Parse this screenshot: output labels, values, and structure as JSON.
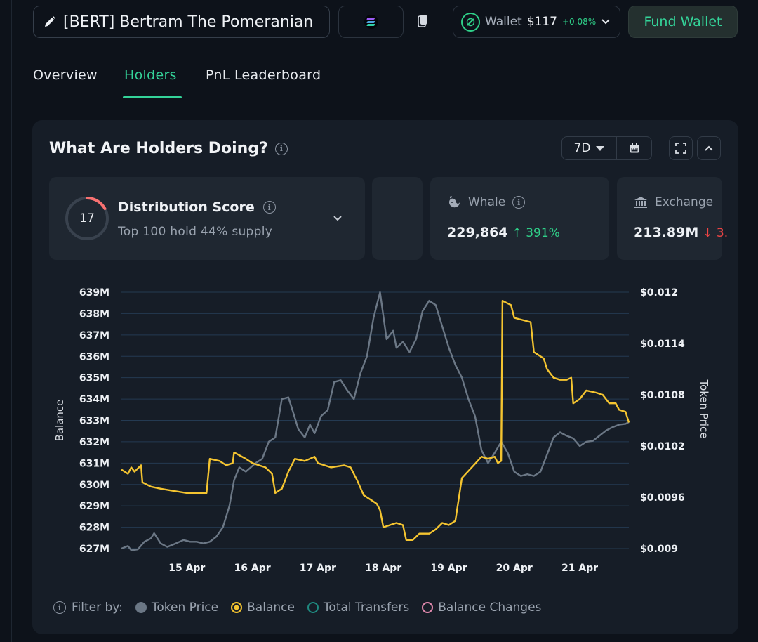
{
  "topbar": {
    "token_name": "[BERT] Bertram The Pomeranian",
    "wallet_label": "Wallet",
    "wallet_amount": "$117",
    "wallet_change": "+0.08%",
    "fund_label": "Fund Wallet"
  },
  "tabs": [
    {
      "label": "Overview",
      "active": false
    },
    {
      "label": "Holders",
      "active": true
    },
    {
      "label": "PnL Leaderboard",
      "active": false
    }
  ],
  "card": {
    "title": "What Are Holders Doing?",
    "range": "7D"
  },
  "tiles": {
    "distribution": {
      "score": "17",
      "score_value": 17,
      "title": "Distribution Score",
      "subtitle": "Top 100 hold 44% supply"
    },
    "whale": {
      "label": "Whale",
      "value": "229,864",
      "change": "↑ 391%"
    },
    "exchange": {
      "label": "Exchange",
      "value": "213.89M",
      "change": "↓ 3."
    }
  },
  "legend": {
    "filter_label": "Filter by:",
    "items": [
      {
        "name": "Token Price",
        "color": "#6b7785",
        "style": "filled"
      },
      {
        "name": "Balance",
        "color": "#f4c430",
        "style": "ring"
      },
      {
        "name": "Total Transfers",
        "color": "#1f8a80",
        "style": "outline"
      },
      {
        "name": "Balance Changes",
        "color": "#e58bb0",
        "style": "outline"
      }
    ]
  },
  "chart_data": {
    "type": "line",
    "ylabel": "Balance",
    "y2label": "Token Price",
    "ylim": [
      627,
      639
    ],
    "y_unit": "M",
    "y2lim": [
      0.009,
      0.012
    ],
    "y_ticks": [
      "627M",
      "628M",
      "629M",
      "630M",
      "631M",
      "632M",
      "633M",
      "634M",
      "635M",
      "636M",
      "637M",
      "638M",
      "639M"
    ],
    "y2_ticks": [
      "$0.009",
      "$0.0096",
      "$0.0102",
      "$0.0108",
      "$0.0114",
      "$0.012"
    ],
    "x_ticks": [
      "15 Apr",
      "16 Apr",
      "17 Apr",
      "18 Apr",
      "19 Apr",
      "20 Apr",
      "21 Apr"
    ],
    "x_range_days": [
      14.0,
      21.75
    ],
    "grid": true,
    "series": [
      {
        "name": "Balance",
        "axis": "left",
        "color": "#f4c430",
        "points": [
          [
            14.0,
            630.7
          ],
          [
            14.1,
            630.5
          ],
          [
            14.15,
            630.8
          ],
          [
            14.2,
            630.6
          ],
          [
            14.3,
            630.9
          ],
          [
            14.32,
            630.1
          ],
          [
            14.45,
            629.9
          ],
          [
            14.6,
            629.8
          ],
          [
            14.8,
            629.7
          ],
          [
            15.0,
            629.6
          ],
          [
            15.3,
            629.6
          ],
          [
            15.35,
            631.2
          ],
          [
            15.5,
            631.1
          ],
          [
            15.6,
            630.9
          ],
          [
            15.7,
            631.0
          ],
          [
            15.72,
            631.5
          ],
          [
            15.9,
            631.2
          ],
          [
            16.0,
            631.0
          ],
          [
            16.2,
            630.8
          ],
          [
            16.3,
            630.5
          ],
          [
            16.35,
            629.6
          ],
          [
            16.45,
            629.8
          ],
          [
            16.55,
            630.6
          ],
          [
            16.65,
            631.2
          ],
          [
            16.8,
            631.1
          ],
          [
            16.95,
            631.3
          ],
          [
            17.0,
            631.0
          ],
          [
            17.2,
            630.8
          ],
          [
            17.4,
            630.9
          ],
          [
            17.5,
            630.8
          ],
          [
            17.6,
            630.2
          ],
          [
            17.7,
            629.5
          ],
          [
            17.8,
            629.3
          ],
          [
            17.9,
            629.1
          ],
          [
            17.95,
            628.8
          ],
          [
            18.0,
            628.0
          ],
          [
            18.1,
            628.1
          ],
          [
            18.2,
            628.2
          ],
          [
            18.3,
            628.1
          ],
          [
            18.35,
            627.4
          ],
          [
            18.45,
            627.4
          ],
          [
            18.55,
            627.7
          ],
          [
            18.7,
            627.7
          ],
          [
            18.8,
            627.9
          ],
          [
            18.9,
            628.2
          ],
          [
            19.0,
            628.1
          ],
          [
            19.1,
            628.3
          ],
          [
            19.2,
            630.3
          ],
          [
            19.35,
            630.8
          ],
          [
            19.5,
            631.3
          ],
          [
            19.6,
            631.2
          ],
          [
            19.7,
            631.3
          ],
          [
            19.75,
            631.0
          ],
          [
            19.8,
            631.1
          ],
          [
            19.82,
            638.6
          ],
          [
            19.95,
            638.4
          ],
          [
            20.0,
            637.8
          ],
          [
            20.25,
            637.6
          ],
          [
            20.3,
            636.2
          ],
          [
            20.45,
            635.9
          ],
          [
            20.5,
            635.4
          ],
          [
            20.6,
            635.0
          ],
          [
            20.7,
            634.9
          ],
          [
            20.8,
            634.9
          ],
          [
            20.87,
            635.0
          ],
          [
            20.9,
            633.8
          ],
          [
            21.0,
            634.0
          ],
          [
            21.1,
            634.4
          ],
          [
            21.25,
            634.3
          ],
          [
            21.35,
            634.2
          ],
          [
            21.45,
            633.8
          ],
          [
            21.55,
            633.8
          ],
          [
            21.6,
            633.5
          ],
          [
            21.7,
            633.4
          ],
          [
            21.75,
            632.9
          ]
        ]
      },
      {
        "name": "Token Price",
        "axis": "right",
        "color": "#6b7785",
        "points": [
          [
            14.0,
            0.009
          ],
          [
            14.1,
            0.00903
          ],
          [
            14.15,
            0.00898
          ],
          [
            14.25,
            0.00899
          ],
          [
            14.35,
            0.00908
          ],
          [
            14.45,
            0.00912
          ],
          [
            14.5,
            0.00918
          ],
          [
            14.55,
            0.00912
          ],
          [
            14.6,
            0.00906
          ],
          [
            14.7,
            0.00902
          ],
          [
            14.8,
            0.00905
          ],
          [
            14.95,
            0.0091
          ],
          [
            15.05,
            0.00908
          ],
          [
            15.15,
            0.00908
          ],
          [
            15.25,
            0.00906
          ],
          [
            15.35,
            0.00908
          ],
          [
            15.45,
            0.00914
          ],
          [
            15.55,
            0.00925
          ],
          [
            15.65,
            0.0095
          ],
          [
            15.72,
            0.0098
          ],
          [
            15.8,
            0.00995
          ],
          [
            15.9,
            0.0099
          ],
          [
            16.05,
            0.01
          ],
          [
            16.15,
            0.01005
          ],
          [
            16.25,
            0.01025
          ],
          [
            16.35,
            0.0103
          ],
          [
            16.45,
            0.01075
          ],
          [
            16.55,
            0.01077
          ],
          [
            16.6,
            0.01065
          ],
          [
            16.7,
            0.0104
          ],
          [
            16.8,
            0.0103
          ],
          [
            16.88,
            0.01045
          ],
          [
            16.95,
            0.01035
          ],
          [
            17.05,
            0.01055
          ],
          [
            17.15,
            0.01062
          ],
          [
            17.25,
            0.01095
          ],
          [
            17.35,
            0.01097
          ],
          [
            17.45,
            0.01085
          ],
          [
            17.55,
            0.01075
          ],
          [
            17.65,
            0.01105
          ],
          [
            17.75,
            0.01125
          ],
          [
            17.85,
            0.0117
          ],
          [
            17.95,
            0.012
          ],
          [
            18.05,
            0.01145
          ],
          [
            18.15,
            0.01155
          ],
          [
            18.2,
            0.01135
          ],
          [
            18.3,
            0.01142
          ],
          [
            18.4,
            0.0113
          ],
          [
            18.5,
            0.01145
          ],
          [
            18.6,
            0.01178
          ],
          [
            18.7,
            0.0119
          ],
          [
            18.8,
            0.01185
          ],
          [
            18.9,
            0.0116
          ],
          [
            19.0,
            0.01135
          ],
          [
            19.1,
            0.01115
          ],
          [
            19.2,
            0.011
          ],
          [
            19.3,
            0.01075
          ],
          [
            19.4,
            0.01055
          ],
          [
            19.5,
            0.01015
          ],
          [
            19.6,
            0.01
          ],
          [
            19.7,
            0.01012
          ],
          [
            19.8,
            0.01025
          ],
          [
            19.9,
            0.01012
          ],
          [
            20.0,
            0.0099
          ],
          [
            20.1,
            0.00985
          ],
          [
            20.2,
            0.00987
          ],
          [
            20.3,
            0.00985
          ],
          [
            20.4,
            0.0099
          ],
          [
            20.5,
            0.0101
          ],
          [
            20.6,
            0.0103
          ],
          [
            20.7,
            0.01036
          ],
          [
            20.8,
            0.01032
          ],
          [
            20.9,
            0.01029
          ],
          [
            21.0,
            0.0102
          ],
          [
            21.1,
            0.01025
          ],
          [
            21.2,
            0.01026
          ],
          [
            21.3,
            0.01032
          ],
          [
            21.4,
            0.01038
          ],
          [
            21.5,
            0.01042
          ],
          [
            21.6,
            0.01045
          ],
          [
            21.7,
            0.01046
          ],
          [
            21.75,
            0.01048
          ]
        ]
      }
    ]
  }
}
